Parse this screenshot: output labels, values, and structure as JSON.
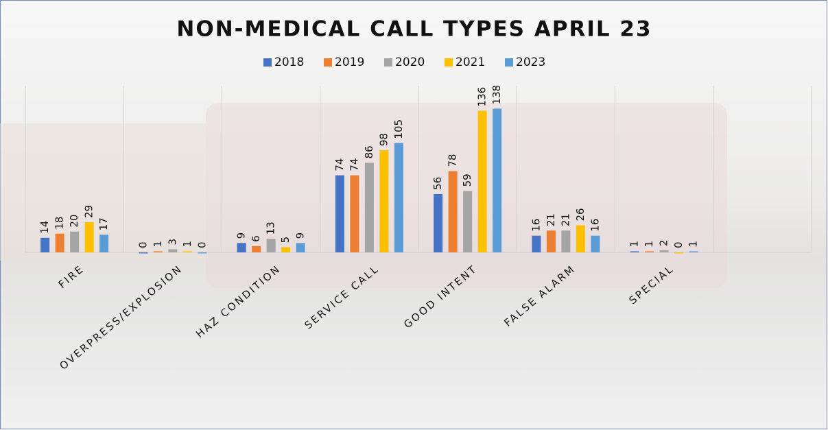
{
  "chart_data": {
    "type": "bar",
    "title": "NON-MEDICAL CALL TYPES APRIL 23",
    "categories": [
      "FIRE",
      "OVERPRESS/EXPLOSION",
      "HAZ CONDITION",
      "SERVICE CALL",
      "GOOD INTENT",
      "FALSE ALARM",
      "SPECIAL",
      null
    ],
    "series": [
      {
        "name": "2018",
        "color": "#4472c4",
        "values": [
          14,
          0,
          9,
          74,
          56,
          16,
          1,
          null
        ]
      },
      {
        "name": "2019",
        "color": "#ed7d31",
        "values": [
          18,
          1,
          6,
          74,
          78,
          21,
          1,
          null
        ]
      },
      {
        "name": "2020",
        "color": "#a5a5a5",
        "values": [
          20,
          3,
          13,
          86,
          59,
          21,
          2,
          null
        ]
      },
      {
        "name": "2021",
        "color": "#ffc000",
        "values": [
          29,
          1,
          5,
          98,
          136,
          26,
          0,
          null
        ]
      },
      {
        "name": "2023",
        "color": "#5b9bd5",
        "values": [
          17,
          0,
          9,
          105,
          138,
          16,
          1,
          null
        ]
      }
    ],
    "ylim": [
      0,
      160
    ],
    "grid": true,
    "legend": "top"
  }
}
